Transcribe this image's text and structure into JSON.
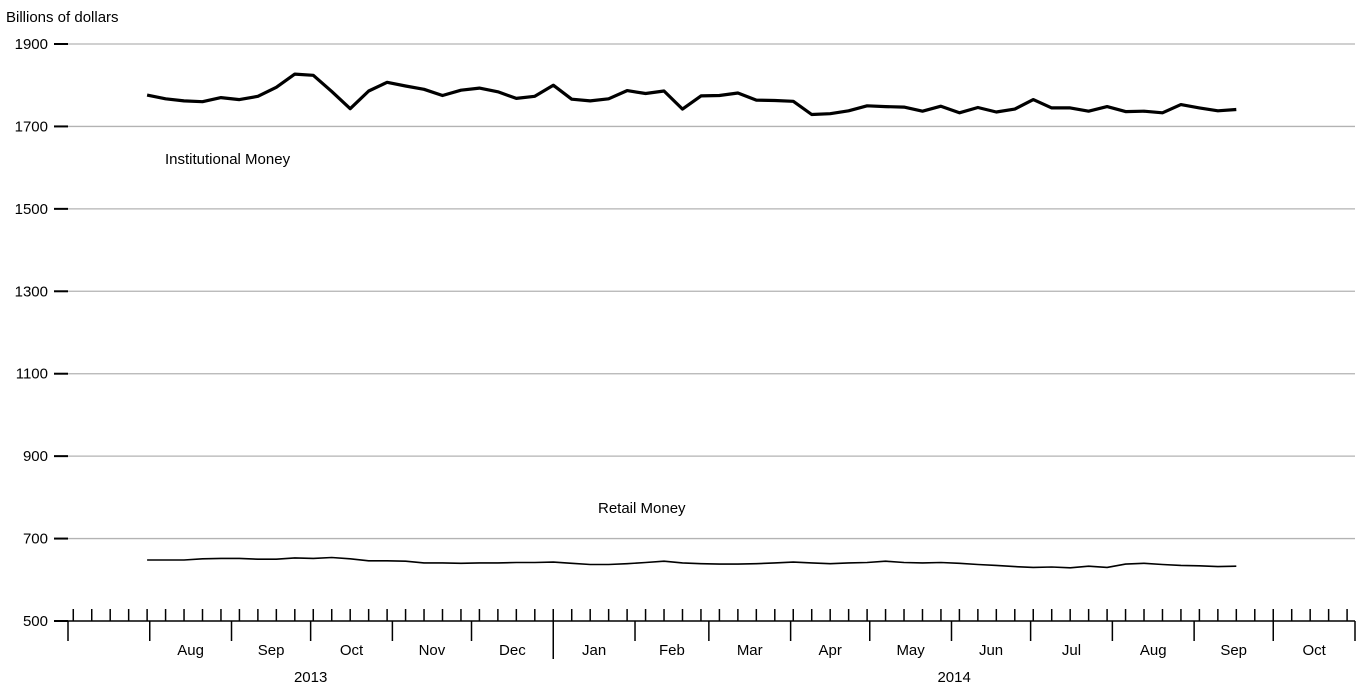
{
  "chart_data": {
    "type": "line",
    "ylabel": "Billions of dollars",
    "ylim": [
      500,
      1900
    ],
    "yticks": [
      500,
      700,
      900,
      1100,
      1300,
      1500,
      1700,
      1900
    ],
    "grid": true,
    "month_labels": [
      "Aug",
      "Sep",
      "Oct",
      "Nov",
      "Dec",
      "Jan",
      "Feb",
      "Mar",
      "Apr",
      "May",
      "Jun",
      "Jul",
      "Aug",
      "Sep",
      "Oct"
    ],
    "year_labels": [
      "2013",
      "2014"
    ],
    "series": [
      {
        "name": "Institutional Money",
        "x": [
          "2013-07-31",
          "2013-08-07",
          "2013-08-14",
          "2013-08-21",
          "2013-08-28",
          "2013-09-04",
          "2013-09-11",
          "2013-09-18",
          "2013-09-25",
          "2013-10-02",
          "2013-10-09",
          "2013-10-16",
          "2013-10-23",
          "2013-10-30",
          "2013-11-06",
          "2013-11-13",
          "2013-11-20",
          "2013-11-27",
          "2013-12-04",
          "2013-12-11",
          "2013-12-18",
          "2013-12-25",
          "2014-01-01",
          "2014-01-08",
          "2014-01-15",
          "2014-01-22",
          "2014-01-29",
          "2014-02-05",
          "2014-02-12",
          "2014-02-19",
          "2014-02-26",
          "2014-03-05",
          "2014-03-12",
          "2014-03-19",
          "2014-03-26",
          "2014-04-02",
          "2014-04-09",
          "2014-04-16",
          "2014-04-23",
          "2014-04-30",
          "2014-05-07",
          "2014-05-14",
          "2014-05-21",
          "2014-05-28",
          "2014-06-04",
          "2014-06-11",
          "2014-06-18",
          "2014-06-25",
          "2014-07-02",
          "2014-07-09",
          "2014-07-16",
          "2014-07-23",
          "2014-07-30",
          "2014-08-06",
          "2014-08-13",
          "2014-08-20",
          "2014-08-27",
          "2014-09-03",
          "2014-09-10",
          "2014-09-17"
        ],
        "values": [
          1776,
          1767,
          1762,
          1760,
          1770,
          1765,
          1773,
          1795,
          1827,
          1824,
          1785,
          1743,
          1786,
          1807,
          1798,
          1790,
          1775,
          1788,
          1793,
          1784,
          1768,
          1773,
          1800,
          1766,
          1762,
          1767,
          1787,
          1780,
          1786,
          1742,
          1774,
          1775,
          1781,
          1764,
          1763,
          1761,
          1729,
          1731,
          1738,
          1750,
          1748,
          1747,
          1737,
          1749,
          1733,
          1746,
          1735,
          1742,
          1765,
          1745,
          1745,
          1737,
          1748,
          1736,
          1737,
          1733,
          1753,
          1745,
          1738,
          1741
        ]
      },
      {
        "name": "Retail Money",
        "x": [
          "2013-07-31",
          "2013-08-07",
          "2013-08-14",
          "2013-08-21",
          "2013-08-28",
          "2013-09-04",
          "2013-09-11",
          "2013-09-18",
          "2013-09-25",
          "2013-10-02",
          "2013-10-09",
          "2013-10-16",
          "2013-10-23",
          "2013-10-30",
          "2013-11-06",
          "2013-11-13",
          "2013-11-20",
          "2013-11-27",
          "2013-12-04",
          "2013-12-11",
          "2013-12-18",
          "2013-12-25",
          "2014-01-01",
          "2014-01-08",
          "2014-01-15",
          "2014-01-22",
          "2014-01-29",
          "2014-02-05",
          "2014-02-12",
          "2014-02-19",
          "2014-02-26",
          "2014-03-05",
          "2014-03-12",
          "2014-03-19",
          "2014-03-26",
          "2014-04-02",
          "2014-04-09",
          "2014-04-16",
          "2014-04-23",
          "2014-04-30",
          "2014-05-07",
          "2014-05-14",
          "2014-05-21",
          "2014-05-28",
          "2014-06-04",
          "2014-06-11",
          "2014-06-18",
          "2014-06-25",
          "2014-07-02",
          "2014-07-09",
          "2014-07-16",
          "2014-07-23",
          "2014-07-30",
          "2014-08-06",
          "2014-08-13",
          "2014-08-20",
          "2014-08-27",
          "2014-09-03",
          "2014-09-10",
          "2014-09-17"
        ],
        "values": [
          648,
          648,
          648,
          651,
          652,
          652,
          650,
          650,
          653,
          652,
          654,
          651,
          646,
          646,
          645,
          641,
          641,
          640,
          641,
          641,
          642,
          642,
          643,
          640,
          637,
          637,
          639,
          642,
          645,
          641,
          639,
          638,
          638,
          639,
          641,
          643,
          641,
          639,
          641,
          642,
          645,
          642,
          641,
          642,
          640,
          637,
          635,
          632,
          630,
          631,
          629,
          633,
          630,
          638,
          640,
          637,
          635,
          634,
          632,
          633
        ]
      }
    ]
  }
}
